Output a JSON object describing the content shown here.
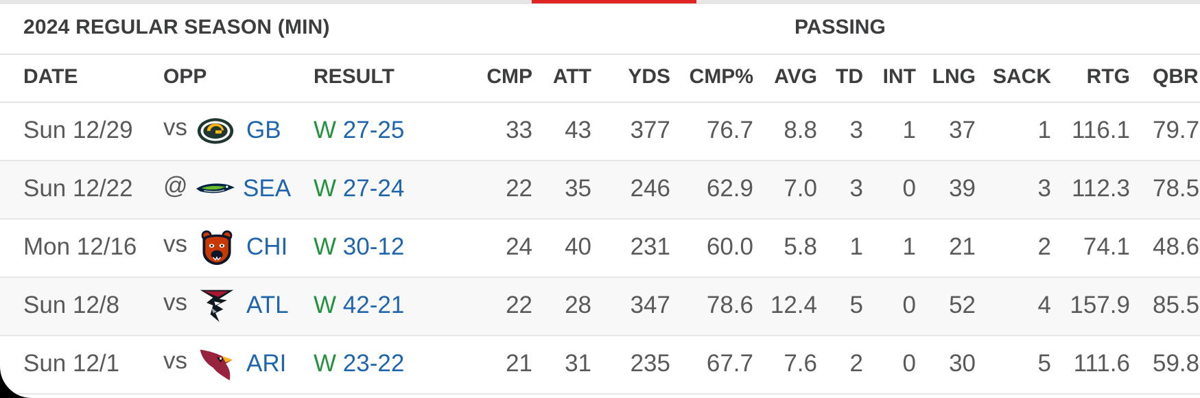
{
  "table": {
    "season_title": "2024 REGULAR SEASON (MIN)",
    "group_title": "PASSING",
    "headers": [
      "DATE",
      "OPP",
      "RESULT",
      "CMP",
      "ATT",
      "YDS",
      "CMP%",
      "AVG",
      "TD",
      "INT",
      "LNG",
      "SACK",
      "RTG",
      "QBR"
    ],
    "rows": [
      {
        "date": "Sun 12/29",
        "prefix": "vs",
        "logo": "packers-logo-icon",
        "team": "GB",
        "outcome": "W",
        "score": "27-25",
        "stats": [
          "33",
          "43",
          "377",
          "76.7",
          "8.8",
          "3",
          "1",
          "37",
          "1",
          "116.1",
          "79.7"
        ]
      },
      {
        "date": "Sun 12/22",
        "prefix": "@",
        "logo": "seahawks-logo-icon",
        "team": "SEA",
        "outcome": "W",
        "score": "27-24",
        "stats": [
          "22",
          "35",
          "246",
          "62.9",
          "7.0",
          "3",
          "0",
          "39",
          "3",
          "112.3",
          "78.5"
        ]
      },
      {
        "date": "Mon 12/16",
        "prefix": "vs",
        "logo": "bears-logo-icon",
        "team": "CHI",
        "outcome": "W",
        "score": "30-12",
        "stats": [
          "24",
          "40",
          "231",
          "60.0",
          "5.8",
          "1",
          "1",
          "21",
          "2",
          "74.1",
          "48.6"
        ]
      },
      {
        "date": "Sun 12/8",
        "prefix": "vs",
        "logo": "falcons-logo-icon",
        "team": "ATL",
        "outcome": "W",
        "score": "42-21",
        "stats": [
          "22",
          "28",
          "347",
          "78.6",
          "12.4",
          "5",
          "0",
          "52",
          "4",
          "157.9",
          "85.5"
        ]
      },
      {
        "date": "Sun 12/1",
        "prefix": "vs",
        "logo": "cardinals-logo-icon",
        "team": "ARI",
        "outcome": "W",
        "score": "23-22",
        "stats": [
          "21",
          "31",
          "235",
          "67.7",
          "7.6",
          "2",
          "0",
          "30",
          "5",
          "111.6",
          "59.8"
        ]
      }
    ]
  },
  "colors": {
    "link": "#1f65ad",
    "win": "#23913e",
    "accent_tab": "#e02424"
  }
}
